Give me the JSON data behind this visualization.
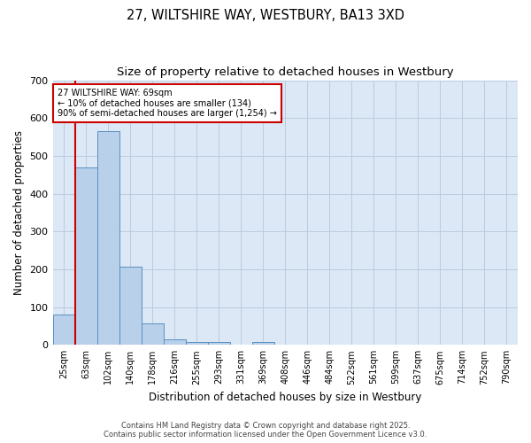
{
  "title_line1": "27, WILTSHIRE WAY, WESTBURY, BA13 3XD",
  "title_line2": "Size of property relative to detached houses in Westbury",
  "xlabel": "Distribution of detached houses by size in Westbury",
  "ylabel": "Number of detached properties",
  "bar_labels": [
    "25sqm",
    "63sqm",
    "102sqm",
    "140sqm",
    "178sqm",
    "216sqm",
    "255sqm",
    "293sqm",
    "331sqm",
    "369sqm",
    "408sqm",
    "446sqm",
    "484sqm",
    "522sqm",
    "561sqm",
    "599sqm",
    "637sqm",
    "675sqm",
    "714sqm",
    "752sqm",
    "790sqm"
  ],
  "bar_values": [
    80,
    470,
    565,
    208,
    58,
    15,
    8,
    8,
    0,
    8,
    0,
    0,
    0,
    0,
    0,
    0,
    0,
    0,
    0,
    0,
    0
  ],
  "bar_color": "#b8d0ea",
  "bar_edge_color": "#5a8fc0",
  "red_line_x": 0.5,
  "annotation_text": "27 WILTSHIRE WAY: 69sqm\n← 10% of detached houses are smaller (134)\n90% of semi-detached houses are larger (1,254) →",
  "annotation_box_color": "#ffffff",
  "annotation_box_edge_color": "#cc0000",
  "vline_color": "#cc0000",
  "ylim": [
    0,
    700
  ],
  "yticks": [
    0,
    100,
    200,
    300,
    400,
    500,
    600,
    700
  ],
  "footer_line1": "Contains HM Land Registry data © Crown copyright and database right 2025.",
  "footer_line2": "Contains public sector information licensed under the Open Government Licence v3.0.",
  "bg_color": "#ffffff",
  "plot_bg_color": "#dce8f5",
  "grid_color": "#b8cce0",
  "title_fontsize": 10.5,
  "subtitle_fontsize": 9.5,
  "tick_fontsize": 7,
  "axis_label_fontsize": 8.5,
  "annotation_fontsize": 7,
  "footer_fontsize": 6
}
